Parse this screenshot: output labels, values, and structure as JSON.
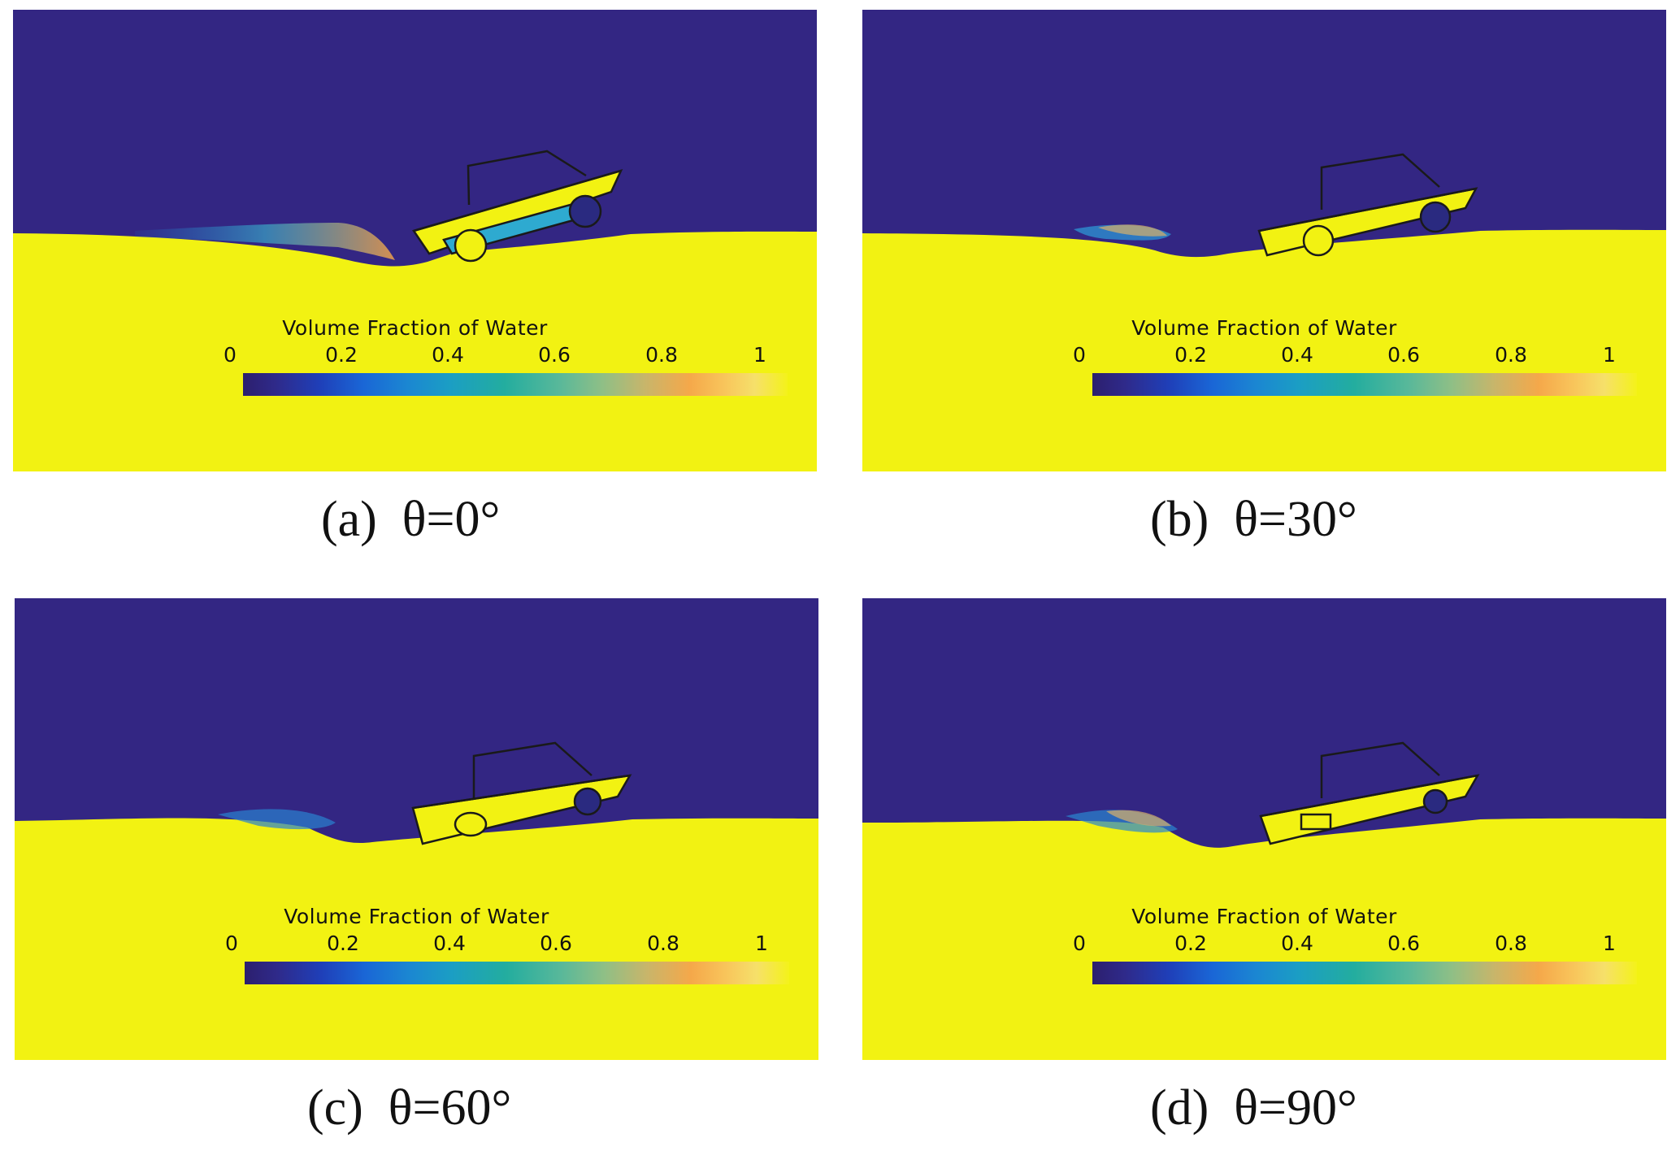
{
  "colorbar": {
    "title": "Volume Fraction of Water",
    "ticks": [
      "0",
      "0.2",
      "0.4",
      "0.6",
      "0.8",
      "1"
    ]
  },
  "colors": {
    "air": "#332683",
    "water": "#f2f212",
    "outline": "#1a1a1a"
  },
  "panels": [
    {
      "caption": "(a)  θ=0°"
    },
    {
      "caption": "(b)  θ=30°"
    },
    {
      "caption": "(c)  θ=60°"
    },
    {
      "caption": "(d)  θ=90°"
    }
  ]
}
